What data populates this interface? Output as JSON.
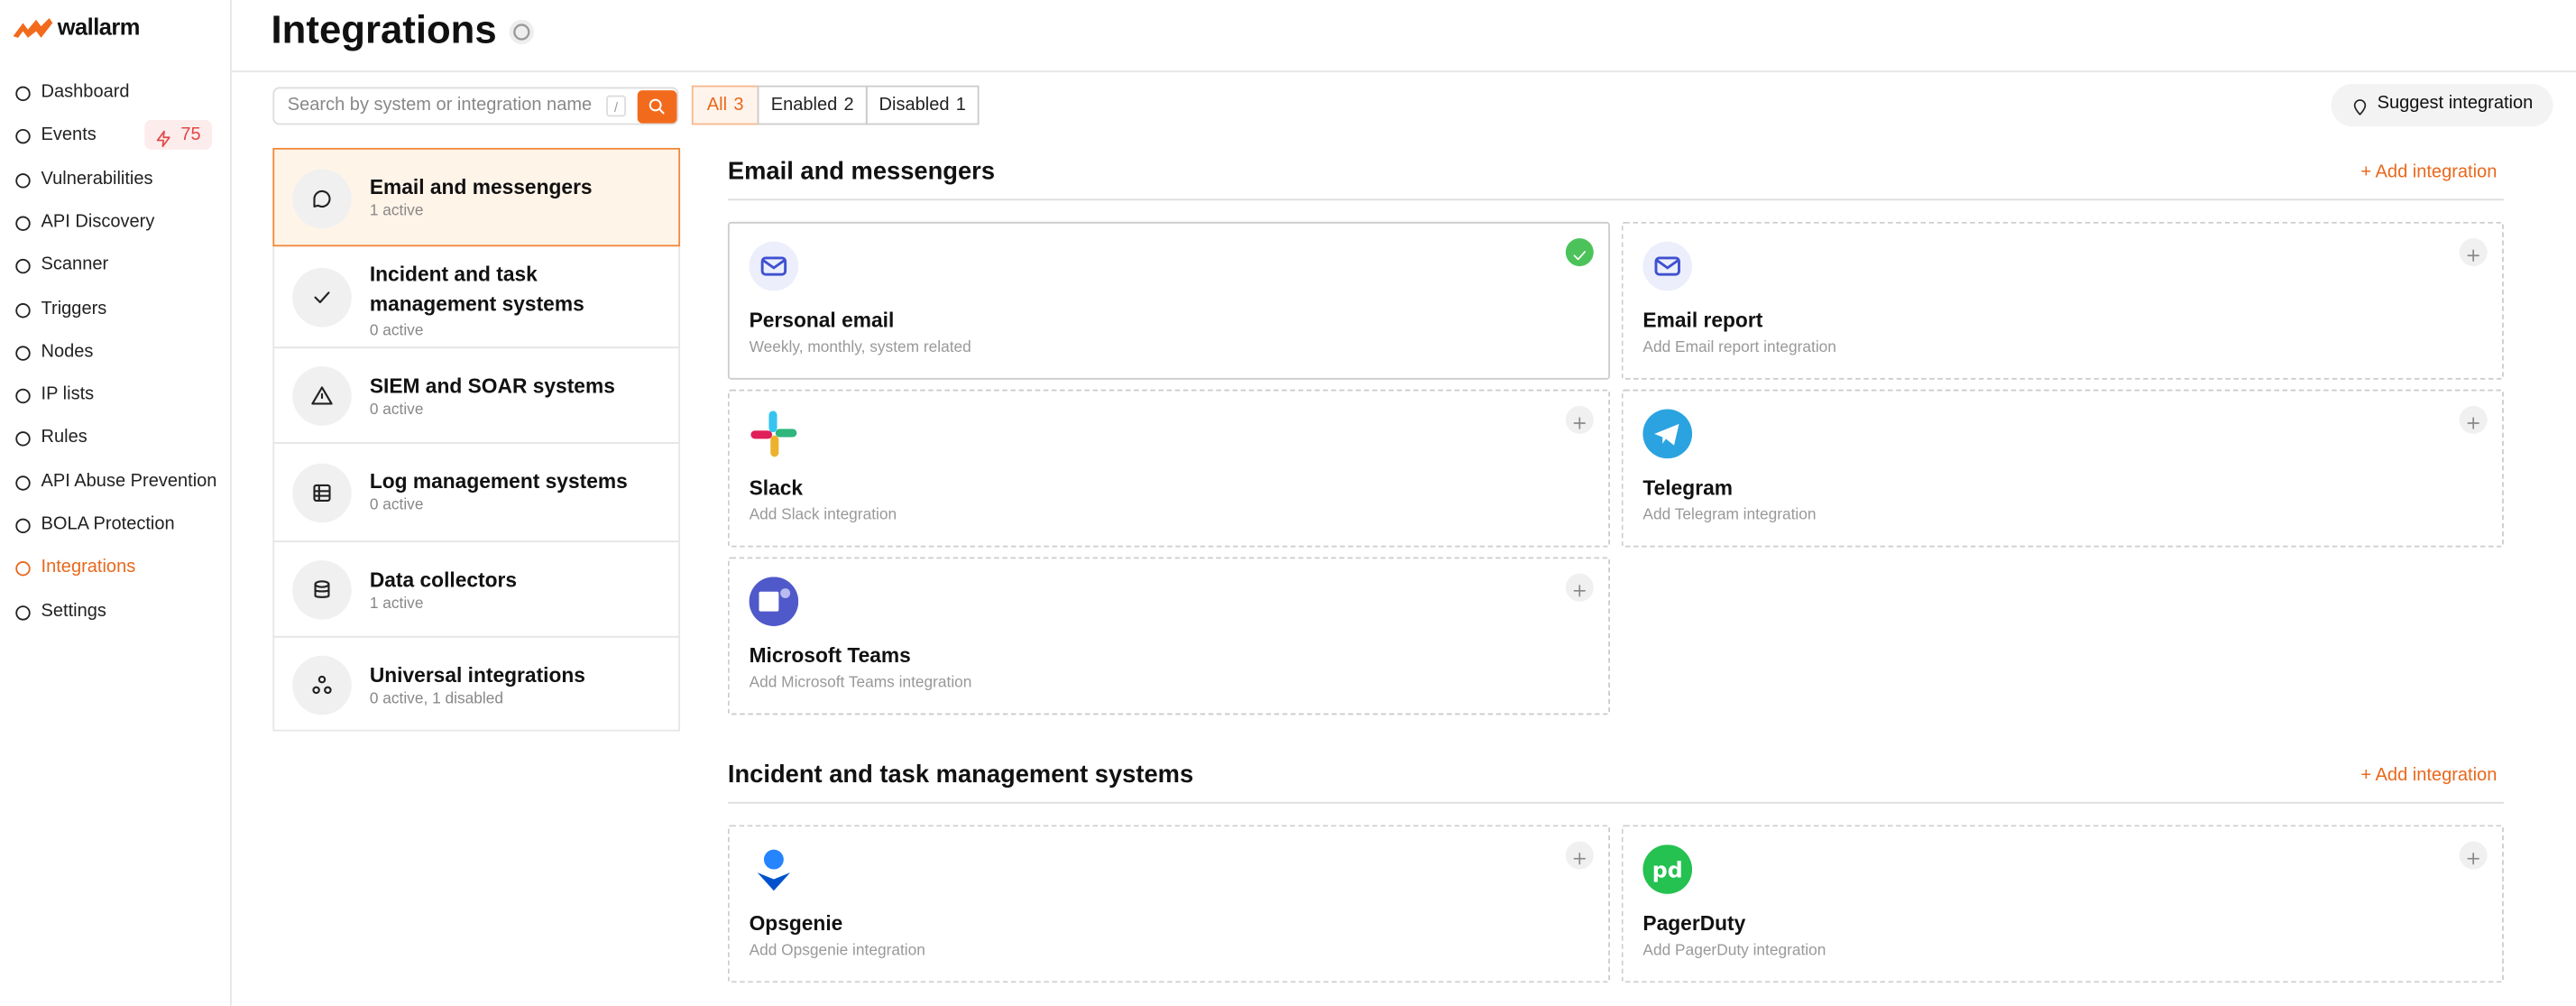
{
  "sidebar": {
    "brand": "wallarm",
    "nav": [
      {
        "label": "Dashboard"
      },
      {
        "label": "Events",
        "badge": "75"
      },
      {
        "label": "Vulnerabilities"
      },
      {
        "label": "API Discovery"
      },
      {
        "label": "Scanner"
      },
      {
        "label": "Triggers"
      },
      {
        "label": "Nodes"
      },
      {
        "label": "IP lists"
      },
      {
        "label": "Rules"
      },
      {
        "label": "API Abuse Prevention"
      },
      {
        "label": "BOLA Protection"
      },
      {
        "label": "Integrations"
      },
      {
        "label": "Settings"
      }
    ]
  },
  "header": {
    "title": "Integrations"
  },
  "toolbar": {
    "search_placeholder": "Search by system or integration name",
    "shortcut": "/",
    "filters": [
      {
        "label": "All",
        "count": "3"
      },
      {
        "label": "Enabled",
        "count": "2"
      },
      {
        "label": "Disabled",
        "count": "1"
      }
    ],
    "suggest": "Suggest integration"
  },
  "categories": [
    {
      "name": "Email and messengers",
      "status": "1 active"
    },
    {
      "name": "Incident and task management systems",
      "status": "0 active"
    },
    {
      "name": "SIEM and SOAR systems",
      "status": "0 active"
    },
    {
      "name": "Log management systems",
      "status": "0 active"
    },
    {
      "name": "Data collectors",
      "status": "1 active"
    },
    {
      "name": "Universal integrations",
      "status": "0 active, 1 disabled"
    }
  ],
  "sections": [
    {
      "title": "Email and messengers",
      "action": "Add integration",
      "cards": [
        {
          "name": "Personal email",
          "description": "Weekly, monthly, system related"
        },
        {
          "name": "Email report",
          "description": "Add Email report integration"
        },
        {
          "name": "Slack",
          "description": "Add Slack integration"
        },
        {
          "name": "Telegram",
          "description": "Add Telegram integration"
        },
        {
          "name": "Microsoft Teams",
          "description": "Add Microsoft Teams integration"
        }
      ]
    },
    {
      "title": "Incident and task management systems",
      "action": "Add integration",
      "cards": [
        {
          "name": "Opsgenie",
          "description": "Add Opsgenie integration"
        },
        {
          "name": "PagerDuty",
          "description": "Add PagerDuty integration"
        }
      ]
    }
  ]
}
